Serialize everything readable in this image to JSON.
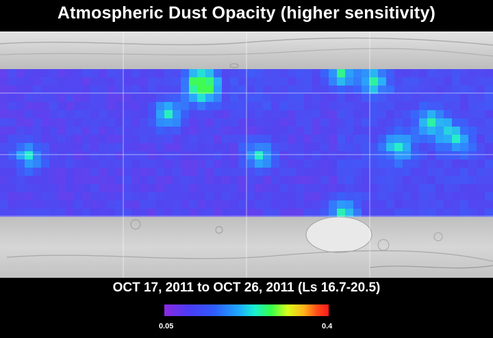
{
  "title": "Atmospheric Dust Opacity (higher sensitivity)",
  "date_range": "OCT 17, 2011 to OCT 26, 2011 (Ls 16.7-20.5)",
  "colorbar": {
    "min_label": "0.05",
    "max_label": "0.4",
    "min_value": 0.05,
    "max_value": 0.4
  },
  "colors": {
    "background": "#000000",
    "text": "#ffffff",
    "terrain": "#c9c9c9",
    "gridline": "#ffffff"
  }
}
